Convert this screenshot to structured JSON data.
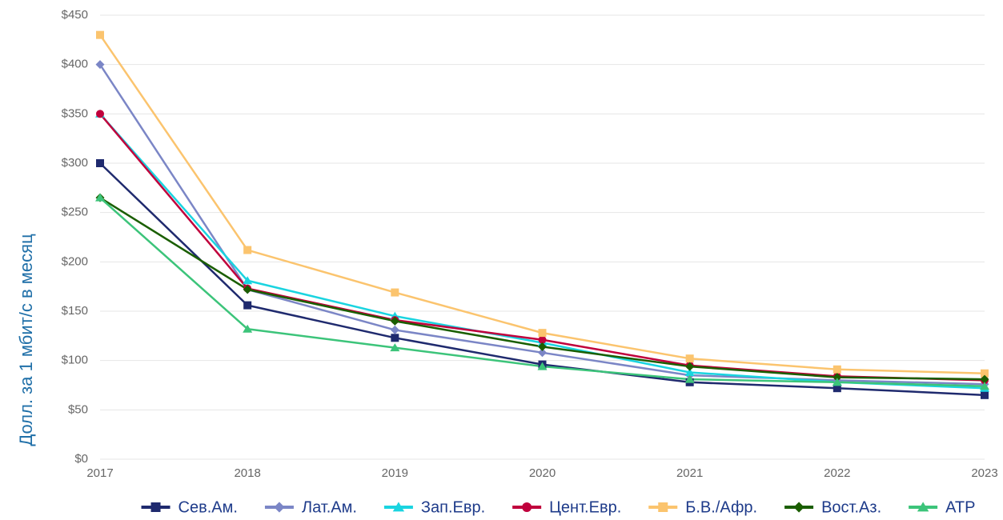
{
  "chart_data": {
    "type": "line",
    "y_label": "Долл. за 1 мбит/с в месяц",
    "categories": [
      "2017",
      "2018",
      "2019",
      "2020",
      "2021",
      "2022",
      "2023"
    ],
    "ylim": [
      0,
      450
    ],
    "yticks": [
      {
        "value": 0,
        "label": "$0"
      },
      {
        "value": 50,
        "label": "$50"
      },
      {
        "value": 100,
        "label": "$100"
      },
      {
        "value": 150,
        "label": "$150"
      },
      {
        "value": 200,
        "label": "$200"
      },
      {
        "value": 250,
        "label": "$250"
      },
      {
        "value": 300,
        "label": "$300"
      },
      {
        "value": 350,
        "label": "$350"
      },
      {
        "value": 400,
        "label": "$400"
      },
      {
        "value": 450,
        "label": "$450"
      }
    ],
    "grid": true,
    "legend": "bottom",
    "series": [
      {
        "name": "Сев.Ам.",
        "color": "#1f2a6e",
        "marker": "square",
        "values": [
          300,
          156,
          123,
          96,
          78,
          72,
          65
        ]
      },
      {
        "name": "Лат.Ам.",
        "color": "#7b86c6",
        "marker": "diamond",
        "values": [
          400,
          172,
          131,
          108,
          85,
          80,
          76
        ]
      },
      {
        "name": "Зап.Евр.",
        "color": "#1ad4e0",
        "marker": "triangle",
        "values": [
          350,
          181,
          145,
          118,
          88,
          78,
          72
        ]
      },
      {
        "name": "Цент.Евр.",
        "color": "#c0003c",
        "marker": "circle",
        "values": [
          350,
          173,
          141,
          121,
          95,
          84,
          80
        ]
      },
      {
        "name": "Б.В./Афр.",
        "color": "#fbc46e",
        "marker": "square",
        "values": [
          430,
          212,
          169,
          128,
          102,
          91,
          87
        ]
      },
      {
        "name": "Вост.Аз.",
        "color": "#1a5e00",
        "marker": "diamond",
        "values": [
          265,
          172,
          140,
          114,
          94,
          83,
          81
        ]
      },
      {
        "name": "АТР",
        "color": "#3cc47a",
        "marker": "triangle",
        "values": [
          265,
          132,
          113,
          94,
          81,
          78,
          74
        ]
      }
    ]
  }
}
